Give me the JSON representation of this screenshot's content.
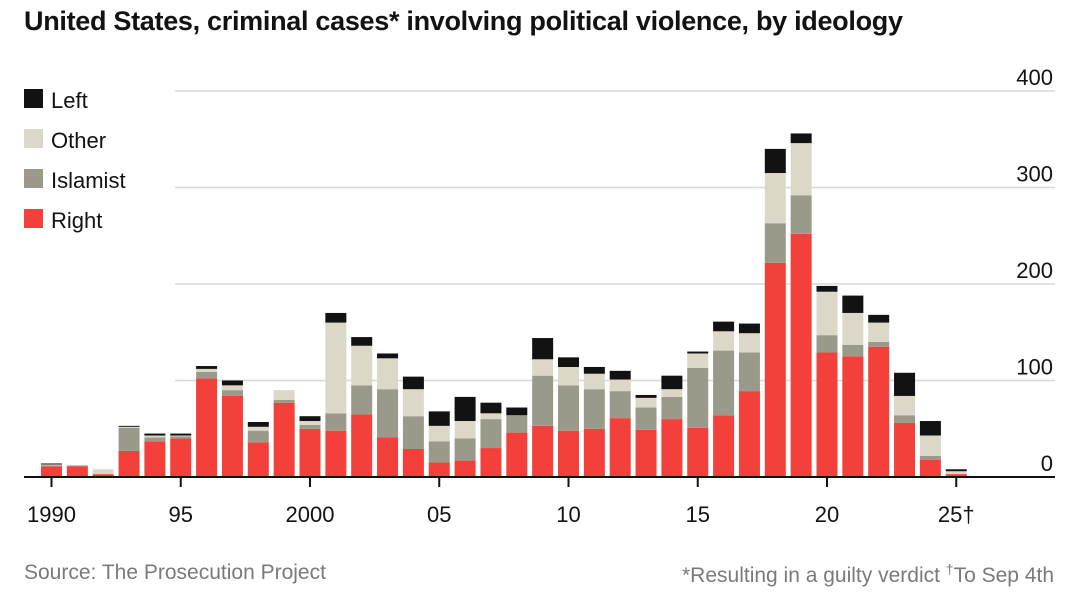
{
  "title": "United States, criminal cases* involving political violence, by ideology",
  "source": "Source: The Prosecution Project",
  "note_main": "*Resulting in a guilty verdict ",
  "note_dagger": "†",
  "note_tail": "To Sep 4th",
  "colors": {
    "Right": "#f4403a",
    "Islamist": "#9b9a8a",
    "Other": "#dbd8c8",
    "Left": "#121212",
    "grid": "#d8d8d8",
    "axis": "#121212"
  },
  "chart_data": {
    "type": "bar",
    "stacked": true,
    "years": [
      1990,
      1991,
      1992,
      1993,
      1994,
      1995,
      1996,
      1997,
      1998,
      1999,
      2000,
      2001,
      2002,
      2003,
      2004,
      2005,
      2006,
      2007,
      2008,
      2009,
      2010,
      2011,
      2012,
      2013,
      2014,
      2015,
      2016,
      2017,
      2018,
      2019,
      2020,
      2021,
      2022,
      2023,
      2024,
      2025
    ],
    "x_tick_labels": [
      {
        "year": 1990,
        "label": "1990"
      },
      {
        "year": 1995,
        "label": "95"
      },
      {
        "year": 2000,
        "label": "2000"
      },
      {
        "year": 2005,
        "label": "05"
      },
      {
        "year": 2010,
        "label": "10"
      },
      {
        "year": 2015,
        "label": "15"
      },
      {
        "year": 2020,
        "label": "20"
      },
      {
        "year": 2025,
        "label": "25†"
      }
    ],
    "y_ticks": [
      0,
      100,
      200,
      300,
      400
    ],
    "ylim": [
      0,
      400
    ],
    "grid": true,
    "legend_position": "top-left",
    "legend_order": [
      "Left",
      "Other",
      "Islamist",
      "Right"
    ],
    "series": [
      {
        "name": "Right",
        "values": [
          11,
          11,
          3,
          27,
          37,
          40,
          102,
          84,
          36,
          77,
          50,
          48,
          65,
          41,
          29,
          15,
          17,
          30,
          46,
          53,
          48,
          50,
          61,
          49,
          60,
          51,
          64,
          89,
          222,
          252,
          129,
          125,
          135,
          56,
          18,
          3
        ]
      },
      {
        "name": "Islamist",
        "values": [
          1,
          1,
          0,
          24,
          4,
          2,
          7,
          6,
          12,
          3,
          4,
          18,
          30,
          50,
          34,
          22,
          23,
          30,
          18,
          52,
          47,
          41,
          28,
          23,
          23,
          62,
          67,
          40,
          41,
          40,
          18,
          12,
          5,
          8,
          4,
          0
        ]
      },
      {
        "name": "Other",
        "values": [
          1,
          0,
          5,
          1,
          2,
          1,
          3,
          5,
          4,
          10,
          4,
          94,
          41,
          32,
          28,
          16,
          18,
          6,
          0,
          17,
          19,
          16,
          12,
          10,
          8,
          15,
          20,
          20,
          52,
          54,
          45,
          33,
          20,
          20,
          21,
          3
        ]
      },
      {
        "name": "Left",
        "values": [
          1,
          0,
          0,
          1,
          2,
          2,
          3,
          5,
          5,
          0,
          5,
          10,
          9,
          5,
          13,
          15,
          25,
          11,
          8,
          22,
          10,
          7,
          9,
          3,
          14,
          2,
          10,
          10,
          25,
          10,
          6,
          18,
          8,
          24,
          15,
          2
        ]
      }
    ]
  }
}
